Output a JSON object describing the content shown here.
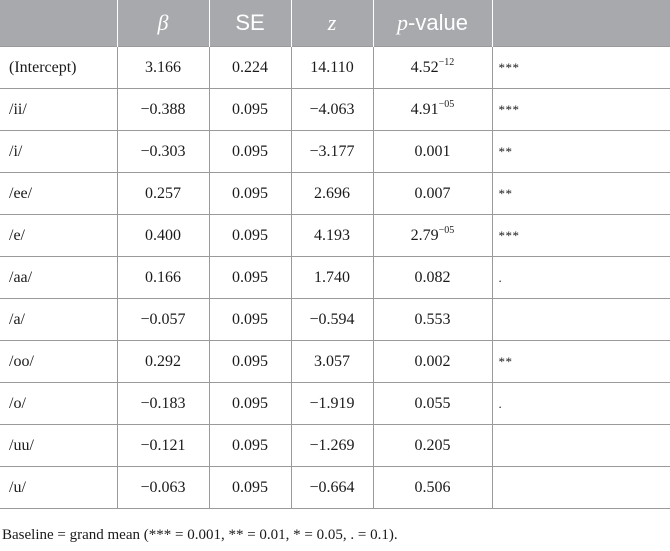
{
  "table": {
    "headers": [
      {
        "label": "",
        "style": "plain"
      },
      {
        "label": "β",
        "style": "italic"
      },
      {
        "label": "SE",
        "style": "sans"
      },
      {
        "label": "z",
        "style": "italic"
      },
      {
        "prefix": "p",
        "label": "-value",
        "style": "mixed"
      },
      {
        "label": "",
        "style": "plain"
      }
    ],
    "rows": [
      {
        "term": "(Intercept)",
        "beta": "3.166",
        "se": "0.224",
        "z": "14.110",
        "p_base": "4.52",
        "p_exp": "−12",
        "sig": "***"
      },
      {
        "term": "/ii/",
        "beta": "−0.388",
        "se": "0.095",
        "z": "−4.063",
        "p_base": "4.91",
        "p_exp": "−05",
        "sig": "***"
      },
      {
        "term": "/i/",
        "beta": "−0.303",
        "se": "0.095",
        "z": "−3.177",
        "p_base": "0.001",
        "p_exp": "",
        "sig": "**"
      },
      {
        "term": "/ee/",
        "beta": "0.257",
        "se": "0.095",
        "z": "2.696",
        "p_base": "0.007",
        "p_exp": "",
        "sig": "**"
      },
      {
        "term": "/e/",
        "beta": "0.400",
        "se": "0.095",
        "z": "4.193",
        "p_base": "2.79",
        "p_exp": "−05",
        "sig": "***"
      },
      {
        "term": "/aa/",
        "beta": "0.166",
        "se": "0.095",
        "z": "1.740",
        "p_base": "0.082",
        "p_exp": "",
        "sig": "."
      },
      {
        "term": "/a/",
        "beta": "−0.057",
        "se": "0.095",
        "z": "−0.594",
        "p_base": "0.553",
        "p_exp": "",
        "sig": ""
      },
      {
        "term": "/oo/",
        "beta": "0.292",
        "se": "0.095",
        "z": "3.057",
        "p_base": "0.002",
        "p_exp": "",
        "sig": "**"
      },
      {
        "term": "/o/",
        "beta": "−0.183",
        "se": "0.095",
        "z": "−1.919",
        "p_base": "0.055",
        "p_exp": "",
        "sig": "."
      },
      {
        "term": "/uu/",
        "beta": "−0.121",
        "se": "0.095",
        "z": "−1.269",
        "p_base": "0.205",
        "p_exp": "",
        "sig": ""
      },
      {
        "term": "/u/",
        "beta": "−0.063",
        "se": "0.095",
        "z": "−0.664",
        "p_base": "0.506",
        "p_exp": "",
        "sig": ""
      }
    ]
  },
  "caption": "Baseline = grand mean (*** = 0.001, ** = 0.01, * = 0.05, . = 0.1).",
  "colors": {
    "header_bg": "#a7a9ac",
    "header_text": "#ffffff",
    "border": "#9a9a9a",
    "text": "#1a1a1a"
  }
}
